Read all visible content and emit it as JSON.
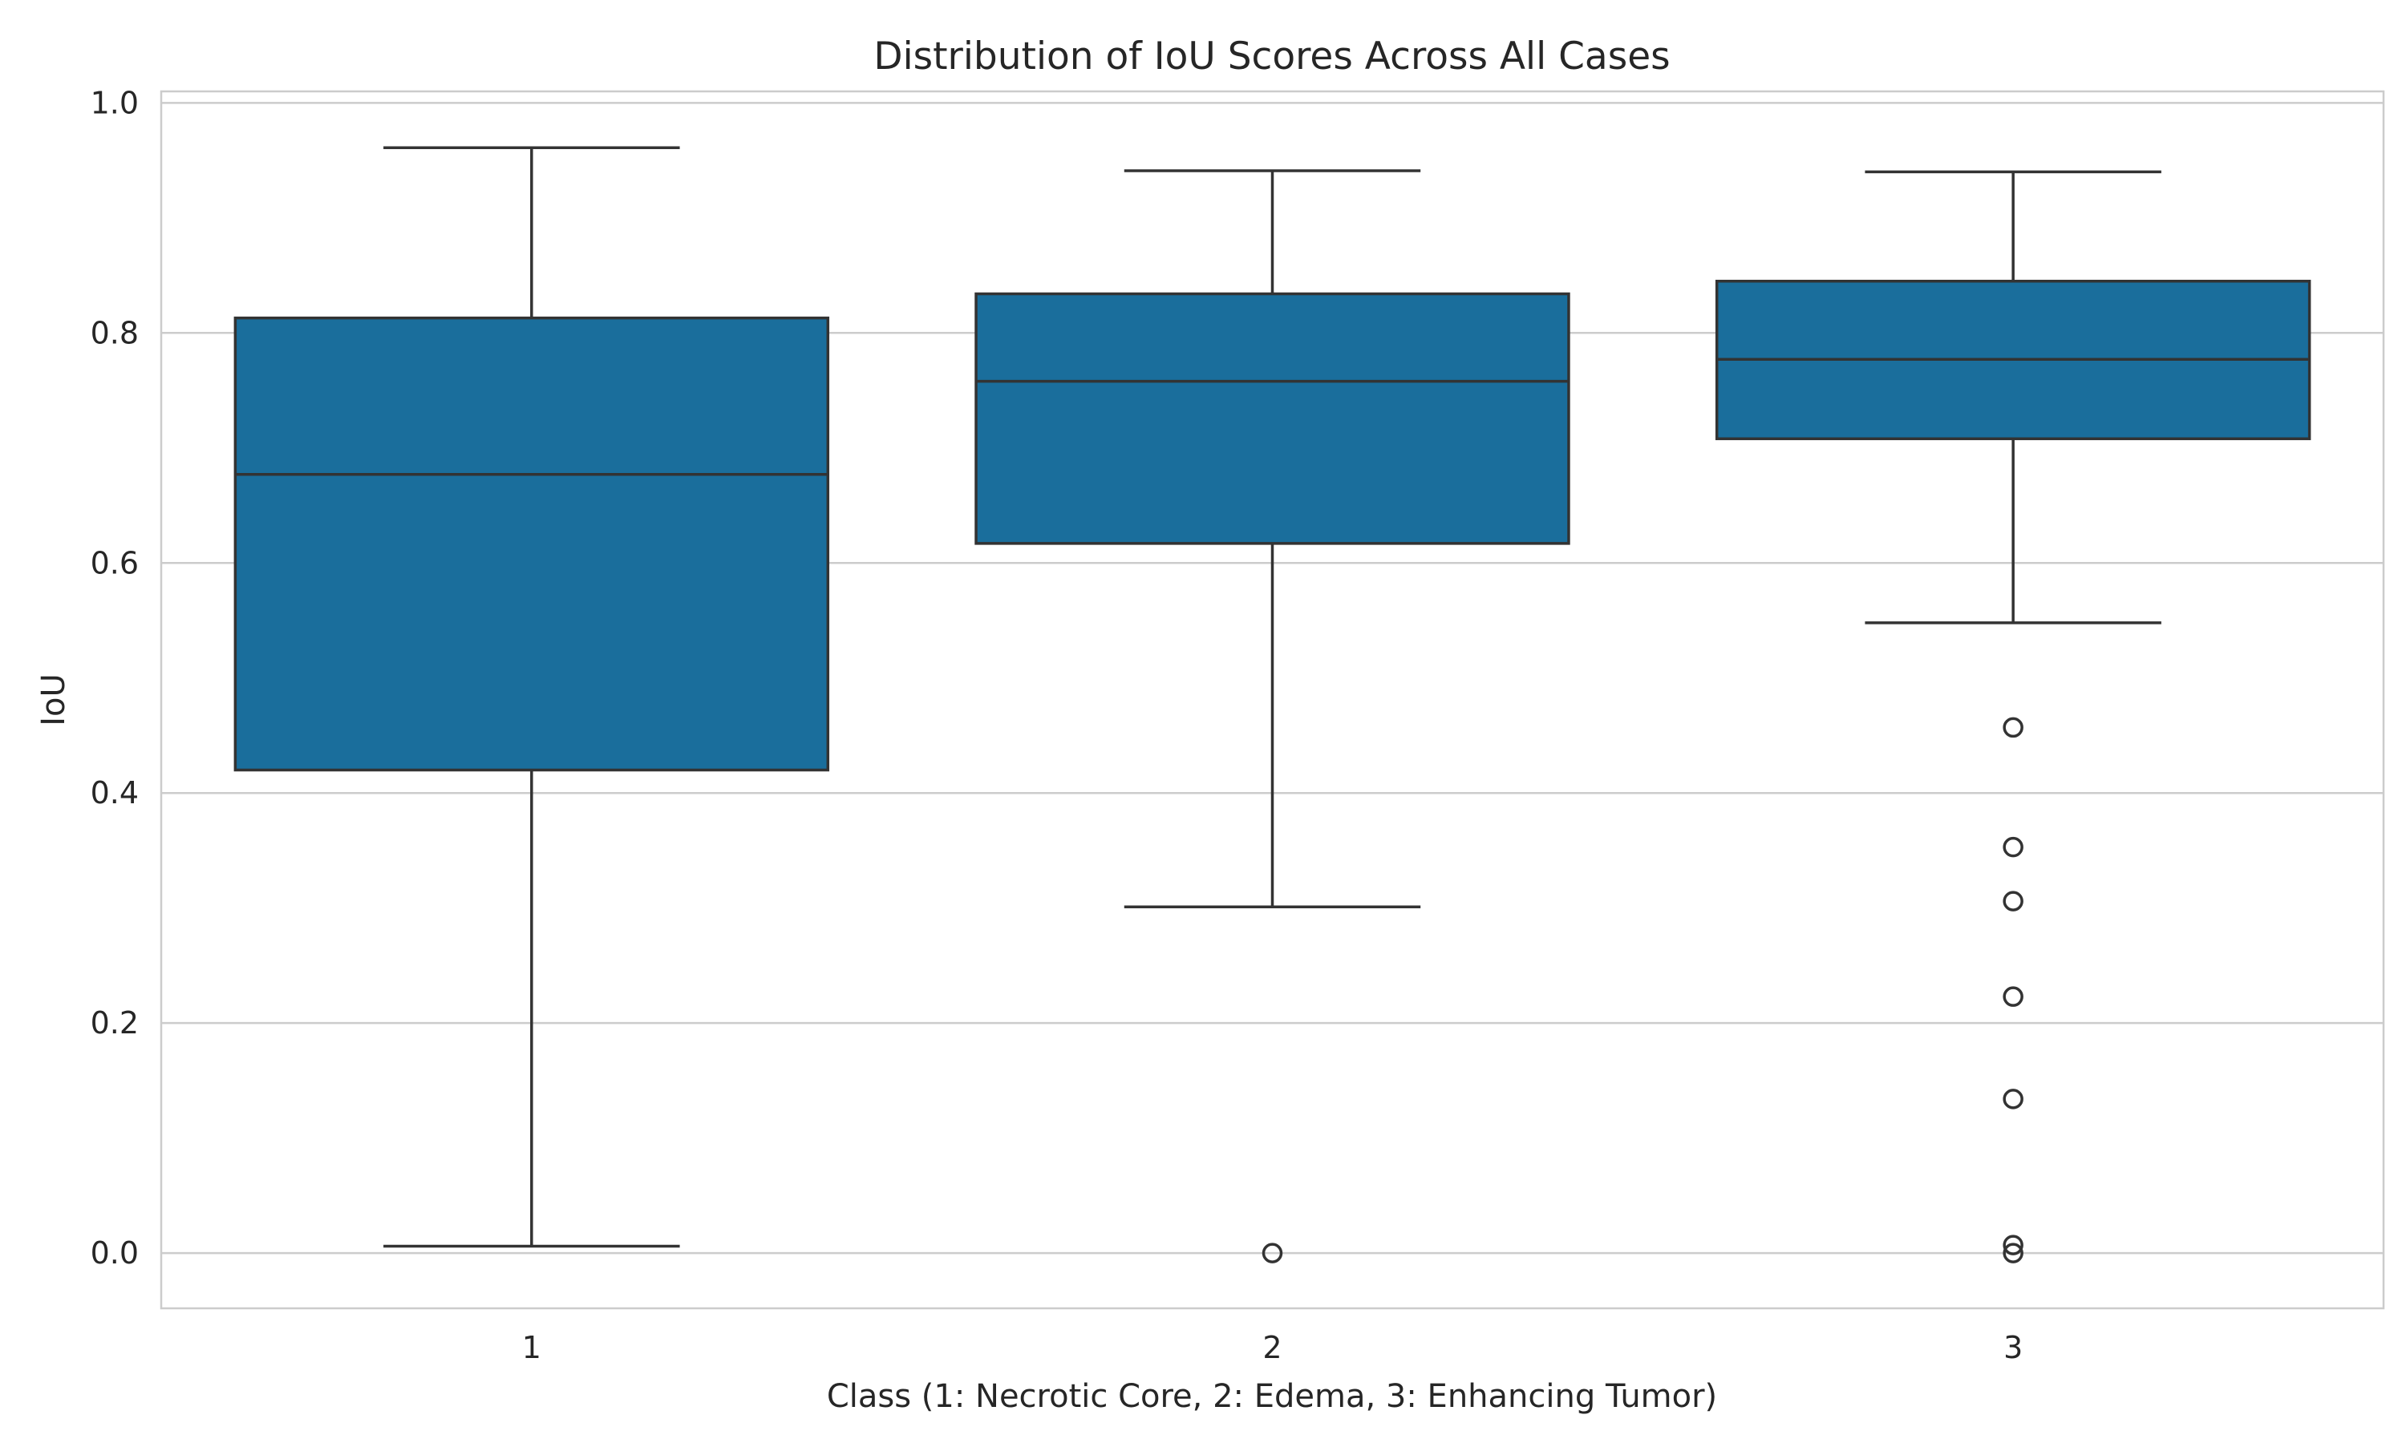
{
  "chart_data": {
    "type": "box",
    "title": "Distribution of IoU Scores Across All Cases",
    "xlabel": "Class (1: Necrotic Core, 2: Edema, 3: Enhancing Tumor)",
    "ylabel": "IoU",
    "ylim": [
      -0.048,
      1.01
    ],
    "yticks": [
      0.0,
      0.2,
      0.4,
      0.6,
      0.8,
      1.0
    ],
    "ytick_labels": [
      "0.0",
      "0.2",
      "0.4",
      "0.6",
      "0.8",
      "1.0"
    ],
    "grid": "horizontal",
    "box_color": "#1a6e9c",
    "categories": [
      "1",
      "2",
      "3"
    ],
    "boxes": [
      {
        "category": "1",
        "whisker_low": 0.006,
        "q1": 0.42,
        "median": 0.677,
        "q3": 0.813,
        "whisker_high": 0.961,
        "fliers": []
      },
      {
        "category": "2",
        "whisker_low": 0.301,
        "q1": 0.617,
        "median": 0.758,
        "q3": 0.834,
        "whisker_high": 0.941,
        "fliers": [
          0.0
        ]
      },
      {
        "category": "3",
        "whisker_low": 0.548,
        "q1": 0.708,
        "median": 0.777,
        "q3": 0.845,
        "whisker_high": 0.94,
        "fliers": [
          0.457,
          0.353,
          0.306,
          0.223,
          0.134,
          0.007,
          0.0
        ]
      }
    ]
  }
}
